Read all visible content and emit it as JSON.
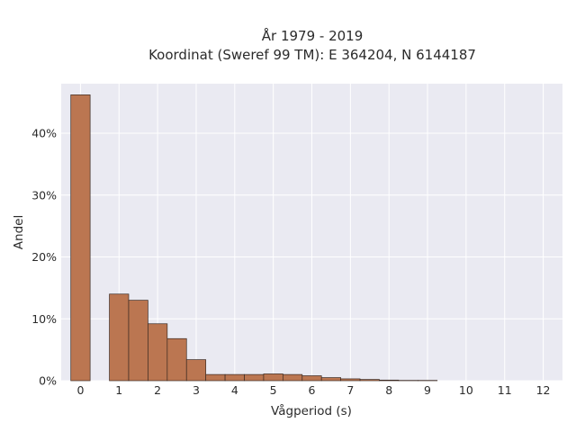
{
  "chart_data": {
    "type": "bar",
    "title": "År 1979 - 2019",
    "subtitle": "Koordinat (Sweref 99 TM): E 364204, N 6144187",
    "xlabel": "Vågperiod (s)",
    "ylabel": "Andel",
    "bin_width": 0.5,
    "x": [
      0,
      1,
      1.5,
      2,
      2.5,
      3,
      3.5,
      4,
      4.5,
      5,
      5.5,
      6,
      6.5,
      7,
      7.5,
      8,
      8.5,
      9
    ],
    "values": [
      46.2,
      14.0,
      13.0,
      9.2,
      6.8,
      3.4,
      1.0,
      1.0,
      1.0,
      1.1,
      1.0,
      0.8,
      0.5,
      0.3,
      0.2,
      0.1,
      0.05,
      0.05
    ],
    "xlim": [
      -0.5,
      12.5
    ],
    "ylim": [
      0,
      48
    ],
    "xticks": [
      0,
      1,
      2,
      3,
      4,
      5,
      6,
      7,
      8,
      9,
      10,
      11,
      12
    ],
    "xtick_labels": [
      "0",
      "1",
      "2",
      "3",
      "4",
      "5",
      "6",
      "7",
      "8",
      "9",
      "10",
      "11",
      "12"
    ],
    "yticks": [
      0,
      10,
      20,
      30,
      40
    ],
    "ytick_labels": [
      "0%",
      "10%",
      "20%",
      "30%",
      "40%"
    ],
    "grid": true,
    "colors": {
      "bar_fill": "#bb7651",
      "bar_edge": "#3b2a22",
      "plot_background": "#eaeaf2",
      "grid": "#ffffff"
    }
  }
}
